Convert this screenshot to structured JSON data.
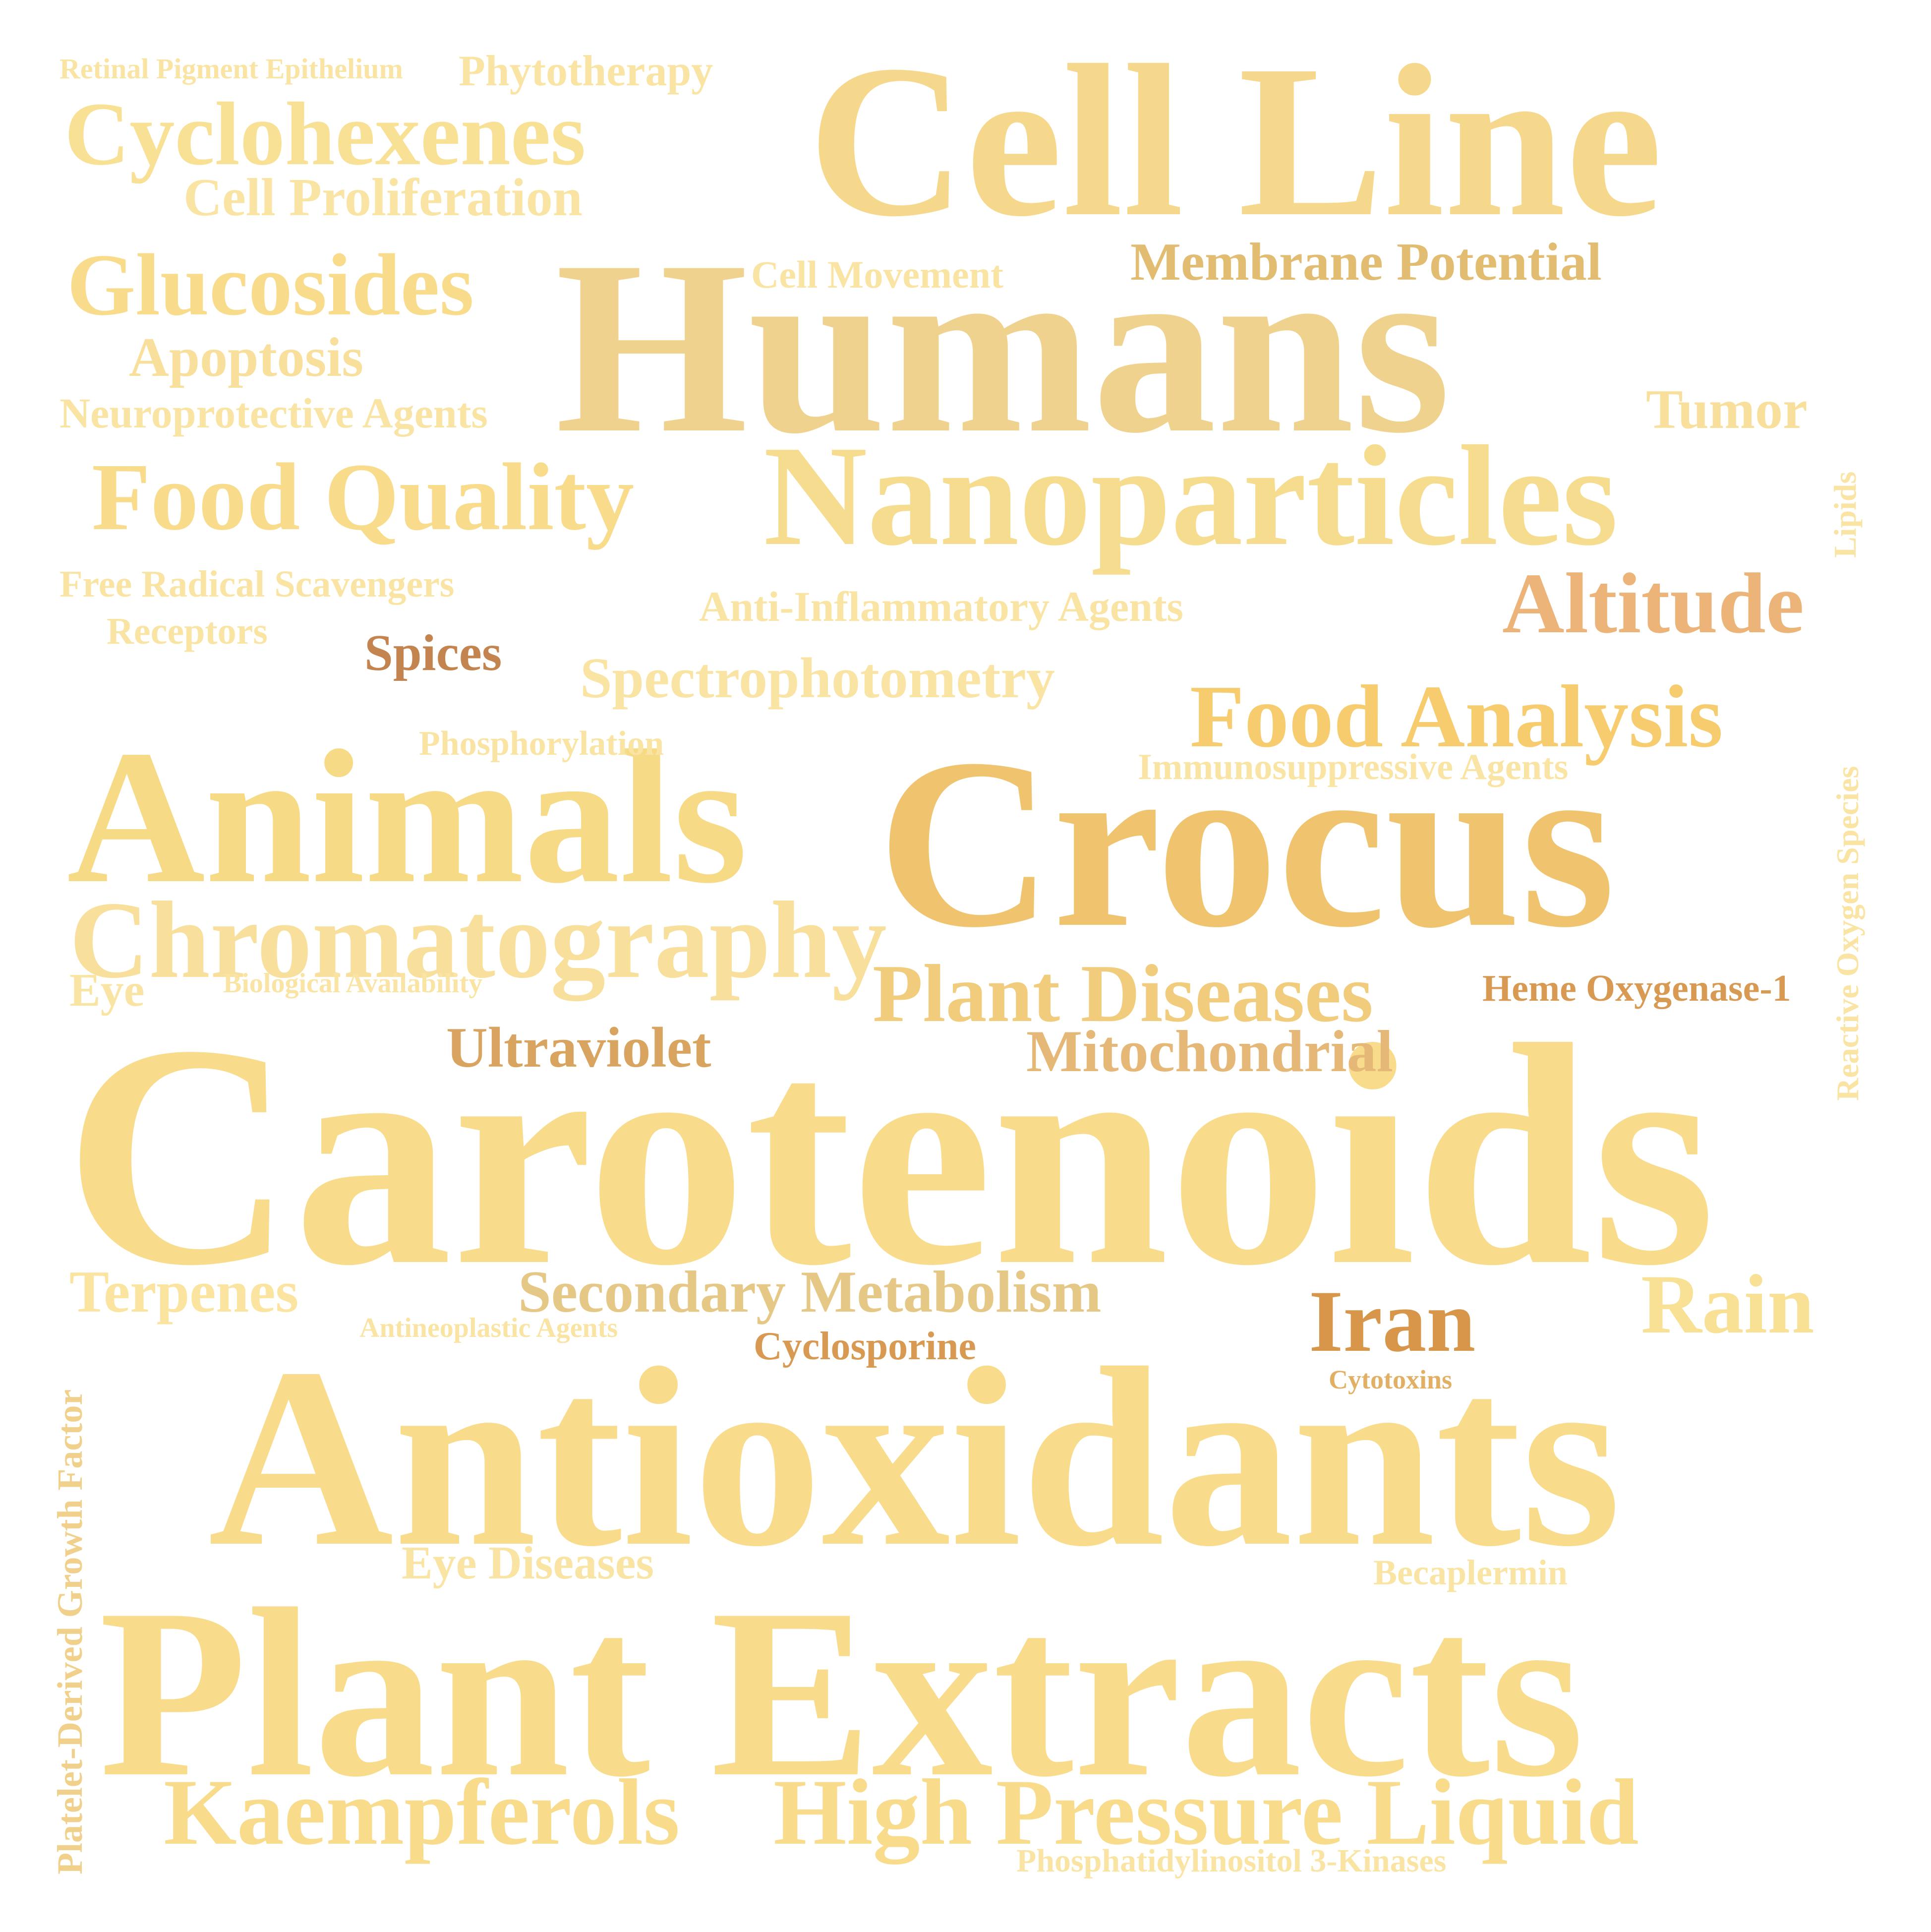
{
  "words": [
    {
      "text": "Carotenoids",
      "color": "#f8dc8c"
    },
    {
      "text": "Antioxidants",
      "color": "#f8dc8c"
    },
    {
      "text": "Plant Extracts",
      "color": "#f8dc8c"
    },
    {
      "text": "Humans",
      "color": "#efd28e"
    },
    {
      "text": "Cell Line",
      "color": "#f6d88c"
    },
    {
      "text": "Crocus",
      "color": "#f0c46e"
    },
    {
      "text": "Animals",
      "color": "#f6da86"
    },
    {
      "text": "Nanoparticles",
      "color": "#f6dc8e"
    },
    {
      "text": "Chromatography",
      "color": "#f8e09c"
    },
    {
      "text": "Food Quality",
      "color": "#f8dc8c"
    },
    {
      "text": "Cyclohexenes",
      "color": "#f8e094"
    },
    {
      "text": "Glucosides",
      "color": "#f8dc8c"
    },
    {
      "text": "Food Analysis",
      "color": "#f6cc6e"
    },
    {
      "text": "Plant Diseases",
      "color": "#f0cc7c"
    },
    {
      "text": "Altitude",
      "color": "#ecb478"
    },
    {
      "text": "Kaempferols",
      "color": "#f8dc8c"
    },
    {
      "text": "High Pressure Liquid",
      "color": "#f8dc8c"
    },
    {
      "text": "Iran",
      "color": "#d8964a"
    },
    {
      "text": "Rain",
      "color": "#f8e094"
    },
    {
      "text": "Mitochondrial",
      "color": "#e6b878"
    },
    {
      "text": "Ultraviolet",
      "color": "#d8a460"
    },
    {
      "text": "Secondary Metabolism",
      "color": "#e6c886"
    },
    {
      "text": "Terpenes",
      "color": "#fae4a0"
    },
    {
      "text": "Spectrophotometry",
      "color": "#fae4a4"
    },
    {
      "text": "Membrane Potential",
      "color": "#e2bc70"
    },
    {
      "text": "Cell Proliferation",
      "color": "#fae4a4"
    },
    {
      "text": "Apoptosis",
      "color": "#f8e09c"
    },
    {
      "text": "Tumor",
      "color": "#f8e09c"
    },
    {
      "text": "Spices",
      "color": "#c48450"
    },
    {
      "text": "Eye Diseases",
      "color": "#fae4a4"
    },
    {
      "text": "Eye",
      "color": "#fae4a4"
    },
    {
      "text": "Phytotherapy",
      "color": "#fae4a4"
    },
    {
      "text": "Neuroprotective Agents",
      "color": "#fae4a4"
    },
    {
      "text": "Anti-Inflammatory Agents",
      "color": "#fae4a4"
    },
    {
      "text": "Free Radical Scavengers",
      "color": "#fae4a4"
    },
    {
      "text": "Receptors",
      "color": "#fae4a4"
    },
    {
      "text": "Immunosuppressive Agents",
      "color": "#fae4a4"
    },
    {
      "text": "Heme Oxygenase-1",
      "color": "#d89a52"
    },
    {
      "text": "Cell Movement",
      "color": "#fae4a4"
    },
    {
      "text": "Phosphorylation",
      "color": "#fae4a4"
    },
    {
      "text": "Cyclosporine",
      "color": "#d89a52"
    },
    {
      "text": "Becaplermin",
      "color": "#fae4a4"
    },
    {
      "text": "Phosphatidylinositol 3-Kinases",
      "color": "#fae4a4"
    },
    {
      "text": "Retinal Pigment Epithelium",
      "color": "#fae4a4"
    },
    {
      "text": "Biological Availability",
      "color": "#fae4a4"
    },
    {
      "text": "Antineoplastic Agents",
      "color": "#fae4a4"
    },
    {
      "text": "Cytotoxins",
      "color": "#e2b064"
    },
    {
      "text": "Platelet-Derived Growth Factor",
      "color": "#f0d08a"
    },
    {
      "text": "Reactive Oxygen Species",
      "color": "#fae4a4"
    },
    {
      "text": "Lipids",
      "color": "#fae4a4"
    }
  ]
}
